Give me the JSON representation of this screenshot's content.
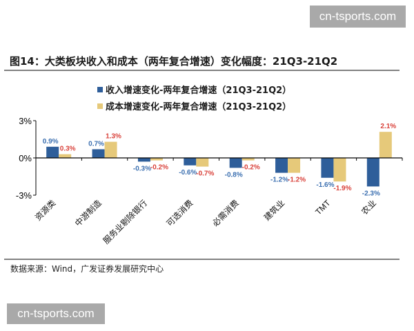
{
  "watermark": "cn-tsports.com",
  "chart_data": {
    "type": "bar",
    "title": "图14：大类板块收入和成本（两年复合增速）变化幅度：21Q3-21Q2",
    "categories": [
      "资源类",
      "中游制造",
      "服务业剔除银行",
      "可选消费",
      "必需消费",
      "建筑业",
      "TMT",
      "农业"
    ],
    "series": [
      {
        "name": "收入增速变化-两年复合增速（21Q3-21Q2）",
        "color": "#2E5E9A",
        "label_color": "#3B6FB0",
        "values": [
          0.9,
          0.7,
          -0.3,
          -0.6,
          -0.8,
          -1.2,
          -1.6,
          -2.3
        ]
      },
      {
        "name": "成本增速变化-两年复合增速（21Q3-21Q2）",
        "color": "#E6C97A",
        "label_color": "#D9413A",
        "values": [
          0.3,
          1.3,
          -0.2,
          -0.7,
          -0.2,
          -1.2,
          -1.9,
          2.1
        ]
      }
    ],
    "ylim": [
      -3,
      3
    ],
    "yticks": [
      "3%",
      "0%",
      "-3%"
    ],
    "ytick_values": [
      3,
      0,
      -3
    ],
    "unit": "%",
    "grid": false,
    "legend_position": "top"
  },
  "source": "数据来源：Wind，广发证券发展研究中心"
}
